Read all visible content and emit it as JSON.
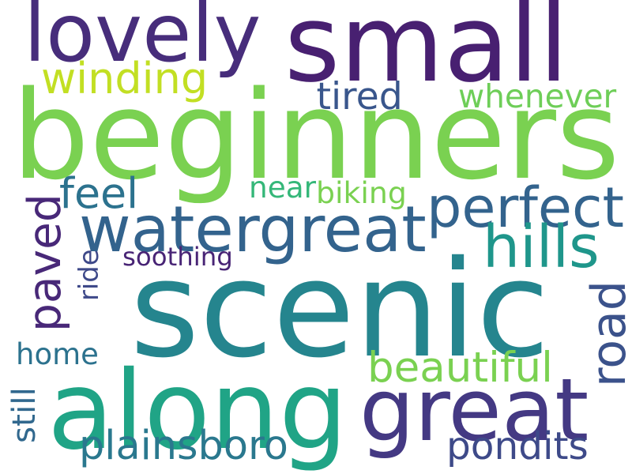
{
  "words": [
    {
      "id": "scenic",
      "text": "scenic",
      "color": "#25858e"
    },
    {
      "id": "beginners",
      "text": "beginners",
      "color": "#7ad151"
    },
    {
      "id": "small",
      "text": "small",
      "color": "#482071"
    },
    {
      "id": "lovely",
      "text": "lovely",
      "color": "#472d7b"
    },
    {
      "id": "along",
      "text": "along",
      "color": "#20a486"
    },
    {
      "id": "great",
      "text": "great",
      "color": "#443983"
    },
    {
      "id": "watergreat",
      "text": "watergreat",
      "color": "#33638d"
    },
    {
      "id": "perfect",
      "text": "perfect",
      "color": "#33638d"
    },
    {
      "id": "hills",
      "text": "hills",
      "color": "#1f968b"
    },
    {
      "id": "paved",
      "text": "paved",
      "color": "#482878"
    },
    {
      "id": "winding",
      "text": "winding",
      "color": "#c2df23"
    },
    {
      "id": "whenever",
      "text": "whenever",
      "color": "#6ece58"
    },
    {
      "id": "tired",
      "text": "tired",
      "color": "#39568c"
    },
    {
      "id": "feel",
      "text": "feel",
      "color": "#2c728e"
    },
    {
      "id": "near",
      "text": "near",
      "color": "#35b779"
    },
    {
      "id": "biking",
      "text": "biking",
      "color": "#7ad151"
    },
    {
      "id": "soothing",
      "text": "soothing",
      "color": "#482475"
    },
    {
      "id": "ride",
      "text": "ride",
      "color": "#3e4989"
    },
    {
      "id": "road",
      "text": "road",
      "color": "#3b528b"
    },
    {
      "id": "home",
      "text": "home",
      "color": "#2c728e"
    },
    {
      "id": "beautiful",
      "text": "beautiful",
      "color": "#7ad151"
    },
    {
      "id": "still",
      "text": "still",
      "color": "#31688e"
    },
    {
      "id": "plainsboro",
      "text": "plainsboro",
      "color": "#2a788e"
    },
    {
      "id": "pondits",
      "text": "pondits",
      "color": "#3e4a89"
    }
  ]
}
